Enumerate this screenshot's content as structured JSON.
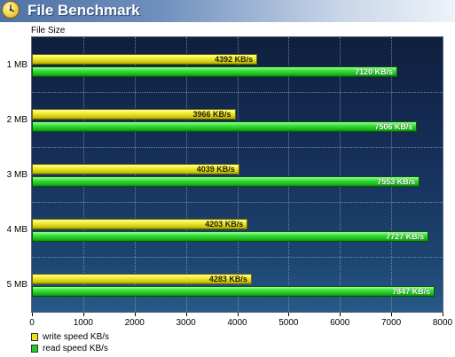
{
  "window": {
    "title": "File Benchmark"
  },
  "chart_data": {
    "type": "bar",
    "orientation": "horizontal",
    "ylabel": "File Size",
    "categories": [
      "1 MB",
      "2 MB",
      "3 MB",
      "4 MB",
      "5 MB"
    ],
    "series": [
      {
        "name": "write speed KB/s",
        "color": "#e6e21e",
        "values": [
          4392,
          3966,
          4039,
          4203,
          4283
        ],
        "labels": [
          "4392 KB/s",
          "3966 KB/s",
          "4039 KB/s",
          "4203 KB/s",
          "4283 KB/s"
        ]
      },
      {
        "name": "read speed KB/s",
        "color": "#22cc22",
        "values": [
          7120,
          7506,
          7553,
          7727,
          7847
        ],
        "labels": [
          "7120 KB/s",
          "7506 KB/s",
          "7553 KB/s",
          "7727 KB/s",
          "7847 KB/s"
        ]
      }
    ],
    "xlim": [
      0,
      8000
    ],
    "xticks": [
      0,
      1000,
      2000,
      3000,
      4000,
      5000,
      6000,
      7000,
      8000
    ],
    "grid": true,
    "legend_position": "bottom-left",
    "background": "dark-blue-gradient"
  }
}
